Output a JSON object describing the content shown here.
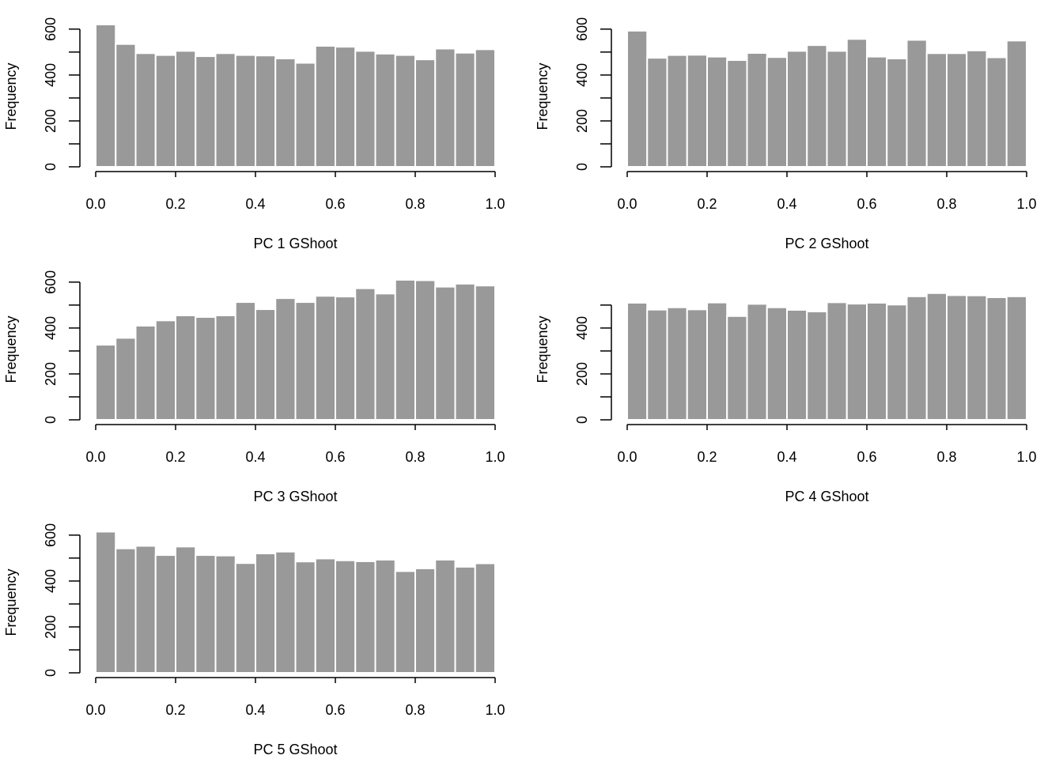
{
  "colors": {
    "bar_fill": "#999999",
    "bar_stroke": "#ffffff",
    "axis": "#000000"
  },
  "chart_data": [
    {
      "type": "bar",
      "title": "",
      "xlabel": "PC 1 GShoot",
      "ylabel": "Frequency",
      "xlim": [
        0,
        1
      ],
      "ylim": [
        0,
        600
      ],
      "xticks": [
        "0.0",
        "0.2",
        "0.4",
        "0.6",
        "0.8",
        "1.0"
      ],
      "yticks": [
        "0",
        "200",
        "400",
        "600"
      ],
      "bin_width": 0.05,
      "values": [
        620,
        535,
        495,
        487,
        505,
        482,
        495,
        487,
        485,
        472,
        453,
        527,
        523,
        505,
        493,
        487,
        468,
        515,
        497,
        512
      ]
    },
    {
      "type": "bar",
      "title": "",
      "xlabel": "PC 2 GShoot",
      "ylabel": "Frequency",
      "xlim": [
        0,
        1
      ],
      "ylim": [
        0,
        600
      ],
      "xticks": [
        "0.0",
        "0.2",
        "0.4",
        "0.6",
        "0.8",
        "1.0"
      ],
      "yticks": [
        "0",
        "200",
        "400",
        "600"
      ],
      "bin_width": 0.05,
      "values": [
        593,
        475,
        487,
        488,
        480,
        465,
        496,
        478,
        505,
        530,
        505,
        557,
        480,
        472,
        553,
        495,
        495,
        507,
        477,
        550
      ]
    },
    {
      "type": "bar",
      "title": "",
      "xlabel": "PC 3 GShoot",
      "ylabel": "Frequency",
      "xlim": [
        0,
        1
      ],
      "ylim": [
        0,
        600
      ],
      "xticks": [
        "0.0",
        "0.2",
        "0.4",
        "0.6",
        "0.8",
        "1.0"
      ],
      "yticks": [
        "0",
        "200",
        "400",
        "600"
      ],
      "bin_width": 0.05,
      "values": [
        327,
        357,
        410,
        433,
        455,
        448,
        455,
        513,
        482,
        530,
        513,
        540,
        537,
        573,
        550,
        610,
        608,
        580,
        593,
        585
      ]
    },
    {
      "type": "bar",
      "title": "",
      "xlabel": "PC 4 GShoot",
      "ylabel": "Frequency",
      "xlim": [
        0,
        1
      ],
      "ylim": [
        0,
        500
      ],
      "xticks": [
        "0.0",
        "0.2",
        "0.4",
        "0.6",
        "0.8",
        "1.0"
      ],
      "yticks": [
        "0",
        "200",
        "400"
      ],
      "bin_width": 0.05,
      "values": [
        510,
        480,
        490,
        481,
        511,
        452,
        505,
        490,
        479,
        472,
        512,
        506,
        510,
        502,
        538,
        552,
        543,
        542,
        534,
        538
      ]
    },
    {
      "type": "bar",
      "title": "",
      "xlabel": "PC 5 GShoot",
      "ylabel": "Frequency",
      "xlim": [
        0,
        1
      ],
      "ylim": [
        0,
        600
      ],
      "xticks": [
        "0.0",
        "0.2",
        "0.4",
        "0.6",
        "0.8",
        "1.0"
      ],
      "yticks": [
        "0",
        "200",
        "400",
        "600"
      ],
      "bin_width": 0.05,
      "values": [
        615,
        542,
        553,
        513,
        550,
        513,
        511,
        478,
        520,
        528,
        485,
        498,
        490,
        486,
        493,
        443,
        455,
        493,
        462,
        477
      ]
    }
  ]
}
